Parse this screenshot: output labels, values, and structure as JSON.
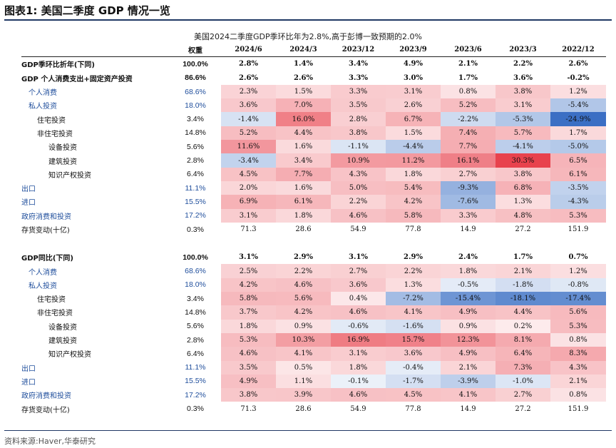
{
  "figure_title": "图表1:  美国二季度 GDP 情况一览",
  "subtitle": "美国2024二季度GDP季环比年为2.8%,高于彭博一致预期的2.0%",
  "columns": [
    "权重",
    "2024/6",
    "2024/3",
    "2023/12",
    "2023/9",
    "2023/6",
    "2023/3",
    "2022/12"
  ],
  "sections": [
    {
      "rows": [
        {
          "label": "GDP季环比折年(下同)",
          "weight": "100.0%",
          "values": [
            "2.8%",
            "1.4%",
            "3.4%",
            "4.9%",
            "2.1%",
            "2.2%",
            "2.6%"
          ],
          "bold": true,
          "indent": 0
        },
        {
          "label": "GDP 个人消费支出+固定资产投资",
          "weight": "86.6%",
          "values": [
            "2.6%",
            "2.6%",
            "3.3%",
            "3.0%",
            "1.7%",
            "3.6%",
            "-0.2%"
          ],
          "bold": true,
          "indent": 0
        },
        {
          "label": "个人消费",
          "weight": "68.6%",
          "values": [
            "2.3%",
            "1.5%",
            "3.3%",
            "3.1%",
            "0.8%",
            "3.8%",
            "1.2%"
          ],
          "blue": true,
          "indent": 1
        },
        {
          "label": "私人投资",
          "weight": "18.0%",
          "values": [
            "3.6%",
            "7.0%",
            "3.5%",
            "2.6%",
            "5.2%",
            "3.1%",
            "-5.4%"
          ],
          "blue": true,
          "indent": 1
        },
        {
          "label": "住宅投资",
          "weight": "3.4%",
          "values": [
            "-1.4%",
            "16.0%",
            "2.8%",
            "6.7%",
            "-2.2%",
            "-5.3%",
            "-24.9%"
          ],
          "indent": 2
        },
        {
          "label": "非住宅投资",
          "weight": "14.8%",
          "values": [
            "5.2%",
            "4.4%",
            "3.8%",
            "1.5%",
            "7.4%",
            "5.7%",
            "1.7%"
          ],
          "indent": 2
        },
        {
          "label": "设备投资",
          "weight": "5.6%",
          "values": [
            "11.6%",
            "1.6%",
            "-1.1%",
            "-4.4%",
            "7.7%",
            "-4.1%",
            "-5.0%"
          ],
          "indent": 3
        },
        {
          "label": "建筑投资",
          "weight": "2.8%",
          "values": [
            "-3.4%",
            "3.4%",
            "10.9%",
            "11.2%",
            "16.1%",
            "30.3%",
            "6.5%"
          ],
          "indent": 3
        },
        {
          "label": "知识产权投资",
          "weight": "6.4%",
          "values": [
            "4.5%",
            "7.7%",
            "4.3%",
            "1.8%",
            "2.7%",
            "3.8%",
            "6.1%"
          ],
          "indent": 3
        },
        {
          "label": "出口",
          "weight": "11.1%",
          "values": [
            "2.0%",
            "1.6%",
            "5.0%",
            "5.4%",
            "-9.3%",
            "6.8%",
            "-3.5%"
          ],
          "blue": true,
          "indent": 0
        },
        {
          "label": "进口",
          "weight": "15.5%",
          "values": [
            "6.9%",
            "6.1%",
            "2.2%",
            "4.2%",
            "-7.6%",
            "1.3%",
            "-4.3%"
          ],
          "blue": true,
          "indent": 0
        },
        {
          "label": "政府消费和投资",
          "weight": "17.2%",
          "values": [
            "3.1%",
            "1.8%",
            "4.6%",
            "5.8%",
            "3.3%",
            "4.8%",
            "5.3%"
          ],
          "blue": true,
          "indent": 0
        },
        {
          "label": "存货变动(十亿)",
          "weight": "0.3%",
          "values": [
            "71.3",
            "28.6",
            "54.9",
            "77.8",
            "14.9",
            "27.2",
            "151.9"
          ],
          "plain": true,
          "indent": 0
        }
      ]
    },
    {
      "rows": [
        {
          "label": "GDP同比(下同)",
          "weight": "100.0%",
          "values": [
            "3.1%",
            "2.9%",
            "3.1%",
            "2.9%",
            "2.4%",
            "1.7%",
            "0.7%"
          ],
          "bold": true,
          "indent": 0
        },
        {
          "label": "个人消费",
          "weight": "68.6%",
          "values": [
            "2.5%",
            "2.2%",
            "2.7%",
            "2.2%",
            "1.8%",
            "2.1%",
            "1.2%"
          ],
          "blue": true,
          "indent": 1
        },
        {
          "label": "私人投资",
          "weight": "18.0%",
          "values": [
            "4.2%",
            "4.6%",
            "3.6%",
            "1.3%",
            "-0.5%",
            "-1.8%",
            "-0.8%"
          ],
          "blue": true,
          "indent": 1
        },
        {
          "label": "住宅投资",
          "weight": "3.4%",
          "values": [
            "5.8%",
            "5.6%",
            "0.4%",
            "-7.2%",
            "-15.4%",
            "-18.1%",
            "-17.4%"
          ],
          "indent": 2
        },
        {
          "label": "非住宅投资",
          "weight": "14.8%",
          "values": [
            "3.7%",
            "4.2%",
            "4.6%",
            "4.1%",
            "4.9%",
            "4.4%",
            "5.6%"
          ],
          "indent": 2
        },
        {
          "label": "设备投资",
          "weight": "5.6%",
          "values": [
            "1.8%",
            "0.9%",
            "-0.6%",
            "-1.6%",
            "0.9%",
            "0.2%",
            "5.3%"
          ],
          "indent": 3
        },
        {
          "label": "建筑投资",
          "weight": "2.8%",
          "values": [
            "5.3%",
            "10.3%",
            "16.9%",
            "15.7%",
            "12.3%",
            "8.1%",
            "0.8%"
          ],
          "indent": 3
        },
        {
          "label": "知识产权投资",
          "weight": "6.4%",
          "values": [
            "4.6%",
            "4.1%",
            "3.1%",
            "3.6%",
            "4.9%",
            "6.4%",
            "8.3%"
          ],
          "indent": 3
        },
        {
          "label": "出口",
          "weight": "11.1%",
          "values": [
            "3.5%",
            "0.5%",
            "1.8%",
            "-0.4%",
            "2.1%",
            "7.3%",
            "4.3%"
          ],
          "blue": true,
          "indent": 0
        },
        {
          "label": "进口",
          "weight": "15.5%",
          "values": [
            "4.9%",
            "1.1%",
            "-0.1%",
            "-1.7%",
            "-3.9%",
            "-1.0%",
            "2.1%"
          ],
          "blue": true,
          "indent": 0
        },
        {
          "label": "政府消费和投资",
          "weight": "17.2%",
          "values": [
            "3.8%",
            "3.9%",
            "4.6%",
            "4.5%",
            "4.1%",
            "2.7%",
            "0.8%"
          ],
          "blue": true,
          "indent": 0
        },
        {
          "label": "存货变动(十亿)",
          "weight": "0.3%",
          "values": [
            "71.3",
            "28.6",
            "54.9",
            "77.8",
            "14.9",
            "27.2",
            "151.9"
          ],
          "plain": true,
          "indent": 0
        }
      ]
    }
  ],
  "source": "资料来源:Haver,华泰研究",
  "colors": {
    "positive": "#e8424d",
    "negative": "#3a6fc4",
    "title_rule": "#1f3864",
    "label_blue": "#1f4e9c"
  }
}
